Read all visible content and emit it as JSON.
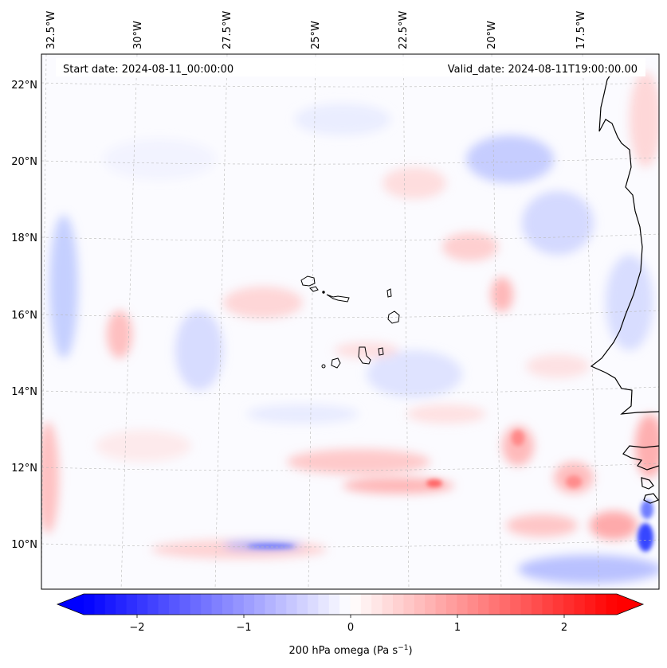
{
  "map": {
    "header_left": "Start date: 2024-08-11_00:00:00",
    "header_right": "Valid_date: 2024-08-11T19:00:00.00",
    "lon_labels": [
      "32.5°W",
      "30°W",
      "27.5°W",
      "25°W",
      "22.5°W",
      "20°W",
      "17.5°W"
    ],
    "lat_labels": [
      "22°N",
      "20°N",
      "18°N",
      "16°N",
      "14°N",
      "12°N",
      "10°N"
    ],
    "field": "200 hPa omega",
    "units": "Pa s",
    "units_exponent": "−1",
    "extent": {
      "lon_west": -33.0,
      "lon_east": -15.6,
      "lat_south": 8.9,
      "lat_north": 22.8
    },
    "projection": "Lambert conformal (curved graticule)"
  },
  "colorbar": {
    "ticks": [
      "−2",
      "−1",
      "0",
      "1",
      "2"
    ],
    "vmin": -2.5,
    "vmax": 2.5,
    "extend": "both",
    "colormap": "bwr",
    "colors": {
      "negative": "#0000ff",
      "zero": "#ffffff",
      "positive": "#ff0000"
    }
  }
}
